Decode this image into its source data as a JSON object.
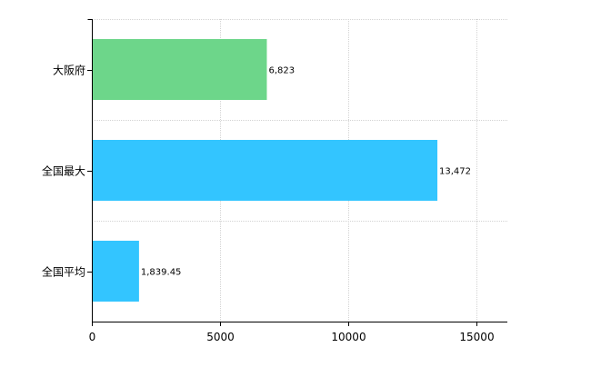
{
  "chart_data": {
    "type": "bar",
    "orientation": "horizontal",
    "categories": [
      "大阪府",
      "全国最大",
      "全国平均"
    ],
    "values": [
      6823,
      13472,
      1839.45
    ],
    "value_labels": [
      "6,823",
      "13,472",
      "1,839.45"
    ],
    "bar_colors": [
      "#6dd68a",
      "#33c5ff",
      "#33c5ff"
    ],
    "title": "",
    "xlabel": "",
    "ylabel": "",
    "xlim": [
      0,
      16200
    ],
    "x_ticks": [
      0,
      5000,
      10000,
      15000
    ],
    "x_tick_labels": [
      "0",
      "5000",
      "10000",
      "15000"
    ],
    "grid": true,
    "legend": "none"
  }
}
